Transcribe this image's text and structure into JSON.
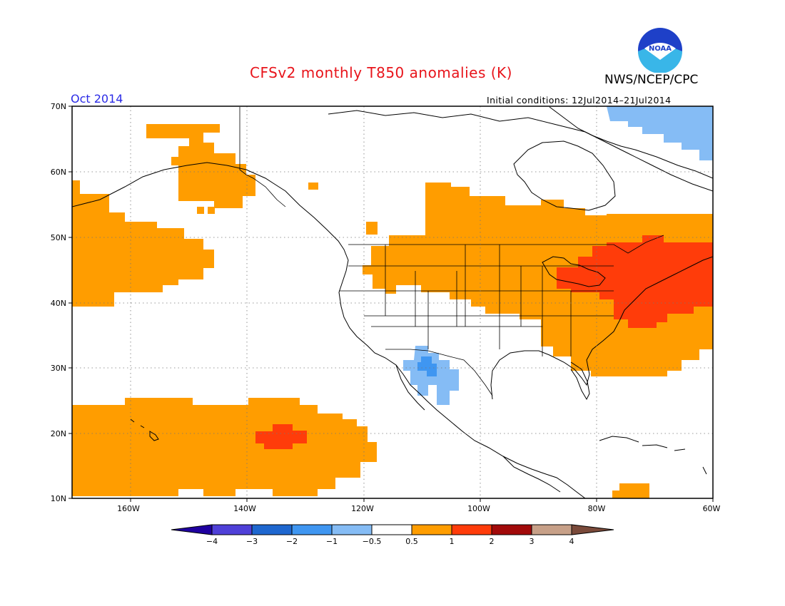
{
  "header": {
    "title": "CFSv2 monthly T850 anomalies (K)",
    "agency": "NWS/NCEP/CPC",
    "period": "Oct 2014",
    "initial_conditions": "Initial conditions: 12Jul2014–21Jul2014",
    "logo_text": "NOAA"
  },
  "map": {
    "projection": "equirectangular",
    "lon_range": [
      -172,
      -60
    ],
    "lat_range": [
      10,
      70
    ],
    "lat_ticks": [
      "70N",
      "60N",
      "50N",
      "40N",
      "30N",
      "20N",
      "10N"
    ],
    "lon_ticks": [
      "160W",
      "140W",
      "120W",
      "100W",
      "80W",
      "60W"
    ],
    "regions": [
      {
        "name": "gulf-of-alaska-warm",
        "category": "0.5 to 1"
      },
      {
        "name": "north-pacific-warm",
        "category": "0.5 to 1"
      },
      {
        "name": "subtropical-pacific-warm",
        "category": "0.5 to 1"
      },
      {
        "name": "subtropical-pacific-core",
        "category": "1 to 2"
      },
      {
        "name": "north-central-us-canada-warm",
        "category": "0.5 to 1"
      },
      {
        "name": "great-lakes-northeast-core",
        "category": "1 to 2"
      },
      {
        "name": "southwest-mexico-cool",
        "category": "-1 to -0.5"
      },
      {
        "name": "southwest-mexico-cool-core",
        "category": "-2 to -1"
      },
      {
        "name": "baffin-greenland-cool",
        "category": "-1 to -0.5"
      },
      {
        "name": "caribbean-warm",
        "category": "0.5 to 1"
      }
    ]
  },
  "colorbar": {
    "labels": [
      "-4",
      "-3",
      "-2",
      "-1",
      "-0.5",
      "0.5",
      "1",
      "2",
      "3",
      "4"
    ],
    "colors": [
      "#1f00a0",
      "#4f40d8",
      "#1e67cf",
      "#3f96f1",
      "#85bcf5",
      "#ffffff",
      "#ff9d00",
      "#ff3c0a",
      "#a20a0a",
      "#c7a088",
      "#7a4a3a"
    ]
  },
  "colors": {
    "title": "#e8141b",
    "period": "#2b2be6",
    "warm1": "#ff9d00",
    "warm2": "#ff3c0a",
    "cool1": "#85bcf5",
    "cool2": "#3f96f1"
  }
}
